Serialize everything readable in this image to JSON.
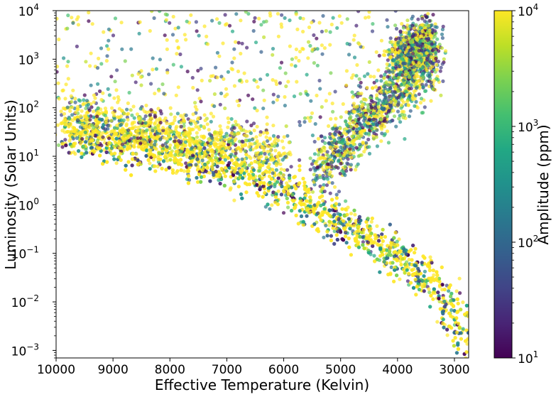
{
  "chart_data": {
    "type": "scatter",
    "title": "",
    "xlabel": "Effective Temperature (Kelvin)",
    "ylabel": "Luminosity (Solar Units)",
    "colorbar_label": "Amplitude (ppm)",
    "x_reversed": true,
    "xlim": [
      10000,
      2750
    ],
    "ylim": [
      0.0007,
      10000
    ],
    "y_scale": "log",
    "x_ticks": [
      10000,
      9000,
      8000,
      7000,
      6000,
      5000,
      4000,
      3000
    ],
    "x_tick_labels": [
      "10000",
      "9000",
      "8000",
      "7000",
      "6000",
      "5000",
      "4000",
      "3000"
    ],
    "y_ticks": [
      {
        "value": 10000,
        "base": "10",
        "exp": "4"
      },
      {
        "value": 1000,
        "base": "10",
        "exp": "3"
      },
      {
        "value": 100,
        "base": "10",
        "exp": "2"
      },
      {
        "value": 10,
        "base": "10",
        "exp": "1"
      },
      {
        "value": 1,
        "base": "10",
        "exp": "0"
      },
      {
        "value": 0.1,
        "base": "10",
        "exp": "−1"
      },
      {
        "value": 0.01,
        "base": "10",
        "exp": "−2"
      },
      {
        "value": 0.001,
        "base": "10",
        "exp": "−3"
      }
    ],
    "colorbar": {
      "scale": "log",
      "range": [
        10,
        10000
      ],
      "colormap": "viridis",
      "ticks": [
        {
          "value": 10000,
          "base": "10",
          "exp": "4"
        },
        {
          "value": 1000,
          "base": "10",
          "exp": "3"
        },
        {
          "value": 100,
          "base": "10",
          "exp": "2"
        },
        {
          "value": 10,
          "base": "10",
          "exp": "1"
        }
      ]
    },
    "grid": false,
    "point_regions": [
      {
        "name": "main-sequence",
        "x": [
          9800,
          8000,
          7000,
          6000,
          5200,
          4300,
          3700,
          3300,
          3000,
          2800
        ],
        "y": [
          30,
          12,
          6,
          2,
          0.6,
          0.15,
          0.05,
          0.02,
          0.005,
          0.001
        ]
      },
      {
        "name": "upper-band",
        "x": [
          9800,
          8500,
          7500,
          6500,
          6000
        ],
        "y": [
          60,
          35,
          22,
          15,
          10
        ]
      },
      {
        "name": "giant-branch",
        "x": [
          5400,
          5000,
          4700,
          4400,
          4000,
          3600,
          3300
        ],
        "y": [
          5,
          15,
          40,
          80,
          200,
          600,
          1500
        ]
      },
      {
        "name": "red-giant-clump",
        "x": [
          4000,
          3500
        ],
        "y": [
          1000,
          2500
        ]
      }
    ]
  }
}
